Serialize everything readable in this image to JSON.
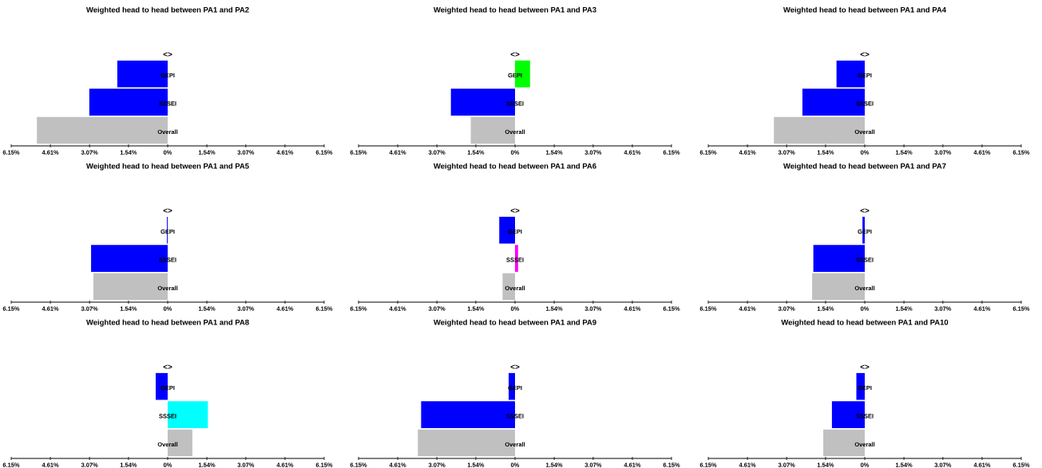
{
  "chart_data": [
    {
      "type": "bar",
      "orientation": "horizontal",
      "title": "Weighted head to head between PA1 and PA2",
      "categories": [
        "GEPI",
        "SSSEI",
        "Overall"
      ],
      "values": [
        -1.98,
        -3.08,
        -5.14
      ],
      "colors": [
        "#0000ff",
        "#0000ff",
        "#c0c0c0"
      ],
      "xlim": [
        -6.15,
        6.15
      ],
      "xticks": [
        {
          "value": -6.15,
          "label": "6.15%"
        },
        {
          "value": -4.61,
          "label": "4.61%"
        },
        {
          "value": -3.07,
          "label": "3.07%"
        },
        {
          "value": -1.54,
          "label": "1.54%"
        },
        {
          "value": 0,
          "label": "0%"
        },
        {
          "value": 1.54,
          "label": "1.54%"
        },
        {
          "value": 3.07,
          "label": "3.07%"
        },
        {
          "value": 4.61,
          "label": "4.61%"
        },
        {
          "value": 6.15,
          "label": "6.15%"
        }
      ],
      "annotations": [
        "<>"
      ]
    },
    {
      "type": "bar",
      "orientation": "horizontal",
      "title": "Weighted head to head between PA1 and PA3",
      "categories": [
        "GEPI",
        "SSSEI",
        "Overall"
      ],
      "values": [
        0.59,
        -2.52,
        -1.74
      ],
      "colors": [
        "#00ff00",
        "#0000ff",
        "#c0c0c0"
      ],
      "xlim": [
        -6.15,
        6.15
      ],
      "xticks": [
        {
          "value": -6.15,
          "label": "6.15%"
        },
        {
          "value": -4.61,
          "label": "4.61%"
        },
        {
          "value": -3.07,
          "label": "3.07%"
        },
        {
          "value": -1.54,
          "label": "1.54%"
        },
        {
          "value": 0,
          "label": "0%"
        },
        {
          "value": 1.54,
          "label": "1.54%"
        },
        {
          "value": 3.07,
          "label": "3.07%"
        },
        {
          "value": 4.61,
          "label": "4.61%"
        },
        {
          "value": 6.15,
          "label": "6.15%"
        }
      ],
      "annotations": [
        "<>"
      ]
    },
    {
      "type": "bar",
      "orientation": "horizontal",
      "title": "Weighted head to head between PA1 and PA4",
      "categories": [
        "GEPI",
        "SSSEI",
        "Overall"
      ],
      "values": [
        -1.11,
        -2.45,
        -3.57
      ],
      "colors": [
        "#0000ff",
        "#0000ff",
        "#c0c0c0"
      ],
      "xlim": [
        -6.15,
        6.15
      ],
      "xticks": [
        {
          "value": -6.15,
          "label": "6.15%"
        },
        {
          "value": -4.61,
          "label": "4.61%"
        },
        {
          "value": -3.07,
          "label": "3.07%"
        },
        {
          "value": -1.54,
          "label": "1.54%"
        },
        {
          "value": 0,
          "label": "0%"
        },
        {
          "value": 1.54,
          "label": "1.54%"
        },
        {
          "value": 3.07,
          "label": "3.07%"
        },
        {
          "value": 4.61,
          "label": "4.61%"
        },
        {
          "value": 6.15,
          "label": "6.15%"
        }
      ],
      "annotations": [
        "<>"
      ]
    },
    {
      "type": "bar",
      "orientation": "horizontal",
      "title": "Weighted head to head between PA1 and PA5",
      "categories": [
        "GEPI",
        "SSSEI",
        "Overall"
      ],
      "values": [
        -0.03,
        -3.01,
        -2.92
      ],
      "colors": [
        "#0000ff",
        "#0000ff",
        "#c0c0c0"
      ],
      "xlim": [
        -6.15,
        6.15
      ],
      "xticks": [
        {
          "value": -6.15,
          "label": "6.15%"
        },
        {
          "value": -4.61,
          "label": "4.61%"
        },
        {
          "value": -3.07,
          "label": "3.07%"
        },
        {
          "value": -1.54,
          "label": "1.54%"
        },
        {
          "value": 0,
          "label": "0%"
        },
        {
          "value": 1.54,
          "label": "1.54%"
        },
        {
          "value": 3.07,
          "label": "3.07%"
        },
        {
          "value": 4.61,
          "label": "4.61%"
        },
        {
          "value": 6.15,
          "label": "6.15%"
        }
      ],
      "annotations": [
        "<>"
      ]
    },
    {
      "type": "bar",
      "orientation": "horizontal",
      "title": "Weighted head to head between PA1 and PA6",
      "categories": [
        "GEPI",
        "SSSEI",
        "Overall"
      ],
      "values": [
        -0.62,
        0.12,
        -0.49
      ],
      "colors": [
        "#0000ff",
        "#ff00ff",
        "#c0c0c0"
      ],
      "xlim": [
        -6.15,
        6.15
      ],
      "xticks": [
        {
          "value": -6.15,
          "label": "6.15%"
        },
        {
          "value": -4.61,
          "label": "4.61%"
        },
        {
          "value": -3.07,
          "label": "3.07%"
        },
        {
          "value": -1.54,
          "label": "1.54%"
        },
        {
          "value": 0,
          "label": "0%"
        },
        {
          "value": 1.54,
          "label": "1.54%"
        },
        {
          "value": 3.07,
          "label": "3.07%"
        },
        {
          "value": 4.61,
          "label": "4.61%"
        },
        {
          "value": 6.15,
          "label": "6.15%"
        }
      ],
      "annotations": [
        "<>"
      ]
    },
    {
      "type": "bar",
      "orientation": "horizontal",
      "title": "Weighted head to head between PA1 and PA7",
      "categories": [
        "GEPI",
        "SSSEI",
        "Overall"
      ],
      "values": [
        -0.09,
        -2.02,
        -2.07
      ],
      "colors": [
        "#0000ff",
        "#0000ff",
        "#c0c0c0"
      ],
      "xlim": [
        -6.15,
        6.15
      ],
      "xticks": [
        {
          "value": -6.15,
          "label": "6.15%"
        },
        {
          "value": -4.61,
          "label": "4.61%"
        },
        {
          "value": -3.07,
          "label": "3.07%"
        },
        {
          "value": -1.54,
          "label": "1.54%"
        },
        {
          "value": 0,
          "label": "0%"
        },
        {
          "value": 1.54,
          "label": "1.54%"
        },
        {
          "value": 3.07,
          "label": "3.07%"
        },
        {
          "value": 4.61,
          "label": "4.61%"
        },
        {
          "value": 6.15,
          "label": "6.15%"
        }
      ],
      "annotations": [
        "<>"
      ]
    },
    {
      "type": "bar",
      "orientation": "horizontal",
      "title": "Weighted head to head between PA1 and PA8",
      "categories": [
        "GEPI",
        "SSSEI",
        "Overall"
      ],
      "values": [
        -0.47,
        1.58,
        0.97
      ],
      "colors": [
        "#0000ff",
        "#00ffff",
        "#c0c0c0"
      ],
      "xlim": [
        -6.15,
        6.15
      ],
      "xticks": [
        {
          "value": -6.15,
          "label": "6.15%"
        },
        {
          "value": -4.61,
          "label": "4.61%"
        },
        {
          "value": -3.07,
          "label": "3.07%"
        },
        {
          "value": -1.54,
          "label": "1.54%"
        },
        {
          "value": 0,
          "label": "0%"
        },
        {
          "value": 1.54,
          "label": "1.54%"
        },
        {
          "value": 3.07,
          "label": "3.07%"
        },
        {
          "value": 4.61,
          "label": "4.61%"
        },
        {
          "value": 6.15,
          "label": "6.15%"
        }
      ],
      "annotations": [
        "<>"
      ]
    },
    {
      "type": "bar",
      "orientation": "horizontal",
      "title": "Weighted head to head between PA1 and PA9",
      "categories": [
        "GEPI",
        "SSSEI",
        "Overall"
      ],
      "values": [
        -0.25,
        -3.69,
        -3.82
      ],
      "colors": [
        "#0000ff",
        "#0000ff",
        "#c0c0c0"
      ],
      "xlim": [
        -6.15,
        6.15
      ],
      "xticks": [
        {
          "value": -6.15,
          "label": "6.15%"
        },
        {
          "value": -4.61,
          "label": "4.61%"
        },
        {
          "value": -3.07,
          "label": "3.07%"
        },
        {
          "value": -1.54,
          "label": "1.54%"
        },
        {
          "value": 0,
          "label": "0%"
        },
        {
          "value": 1.54,
          "label": "1.54%"
        },
        {
          "value": 3.07,
          "label": "3.07%"
        },
        {
          "value": 4.61,
          "label": "4.61%"
        },
        {
          "value": 6.15,
          "label": "6.15%"
        }
      ],
      "annotations": [
        "<>"
      ]
    },
    {
      "type": "bar",
      "orientation": "horizontal",
      "title": "Weighted head to head between PA1 and PA10",
      "categories": [
        "GEPI",
        "SSSEI",
        "Overall"
      ],
      "values": [
        -0.33,
        -1.29,
        -1.63
      ],
      "colors": [
        "#0000ff",
        "#0000ff",
        "#c0c0c0"
      ],
      "xlim": [
        -6.15,
        6.15
      ],
      "xticks": [
        {
          "value": -6.15,
          "label": "6.15%"
        },
        {
          "value": -4.61,
          "label": "4.61%"
        },
        {
          "value": -3.07,
          "label": "3.07%"
        },
        {
          "value": -1.54,
          "label": "1.54%"
        },
        {
          "value": 0,
          "label": "0%"
        },
        {
          "value": 1.54,
          "label": "1.54%"
        },
        {
          "value": 3.07,
          "label": "3.07%"
        },
        {
          "value": 4.61,
          "label": "4.61%"
        },
        {
          "value": 6.15,
          "label": "6.15%"
        }
      ],
      "annotations": [
        "<>"
      ]
    }
  ]
}
